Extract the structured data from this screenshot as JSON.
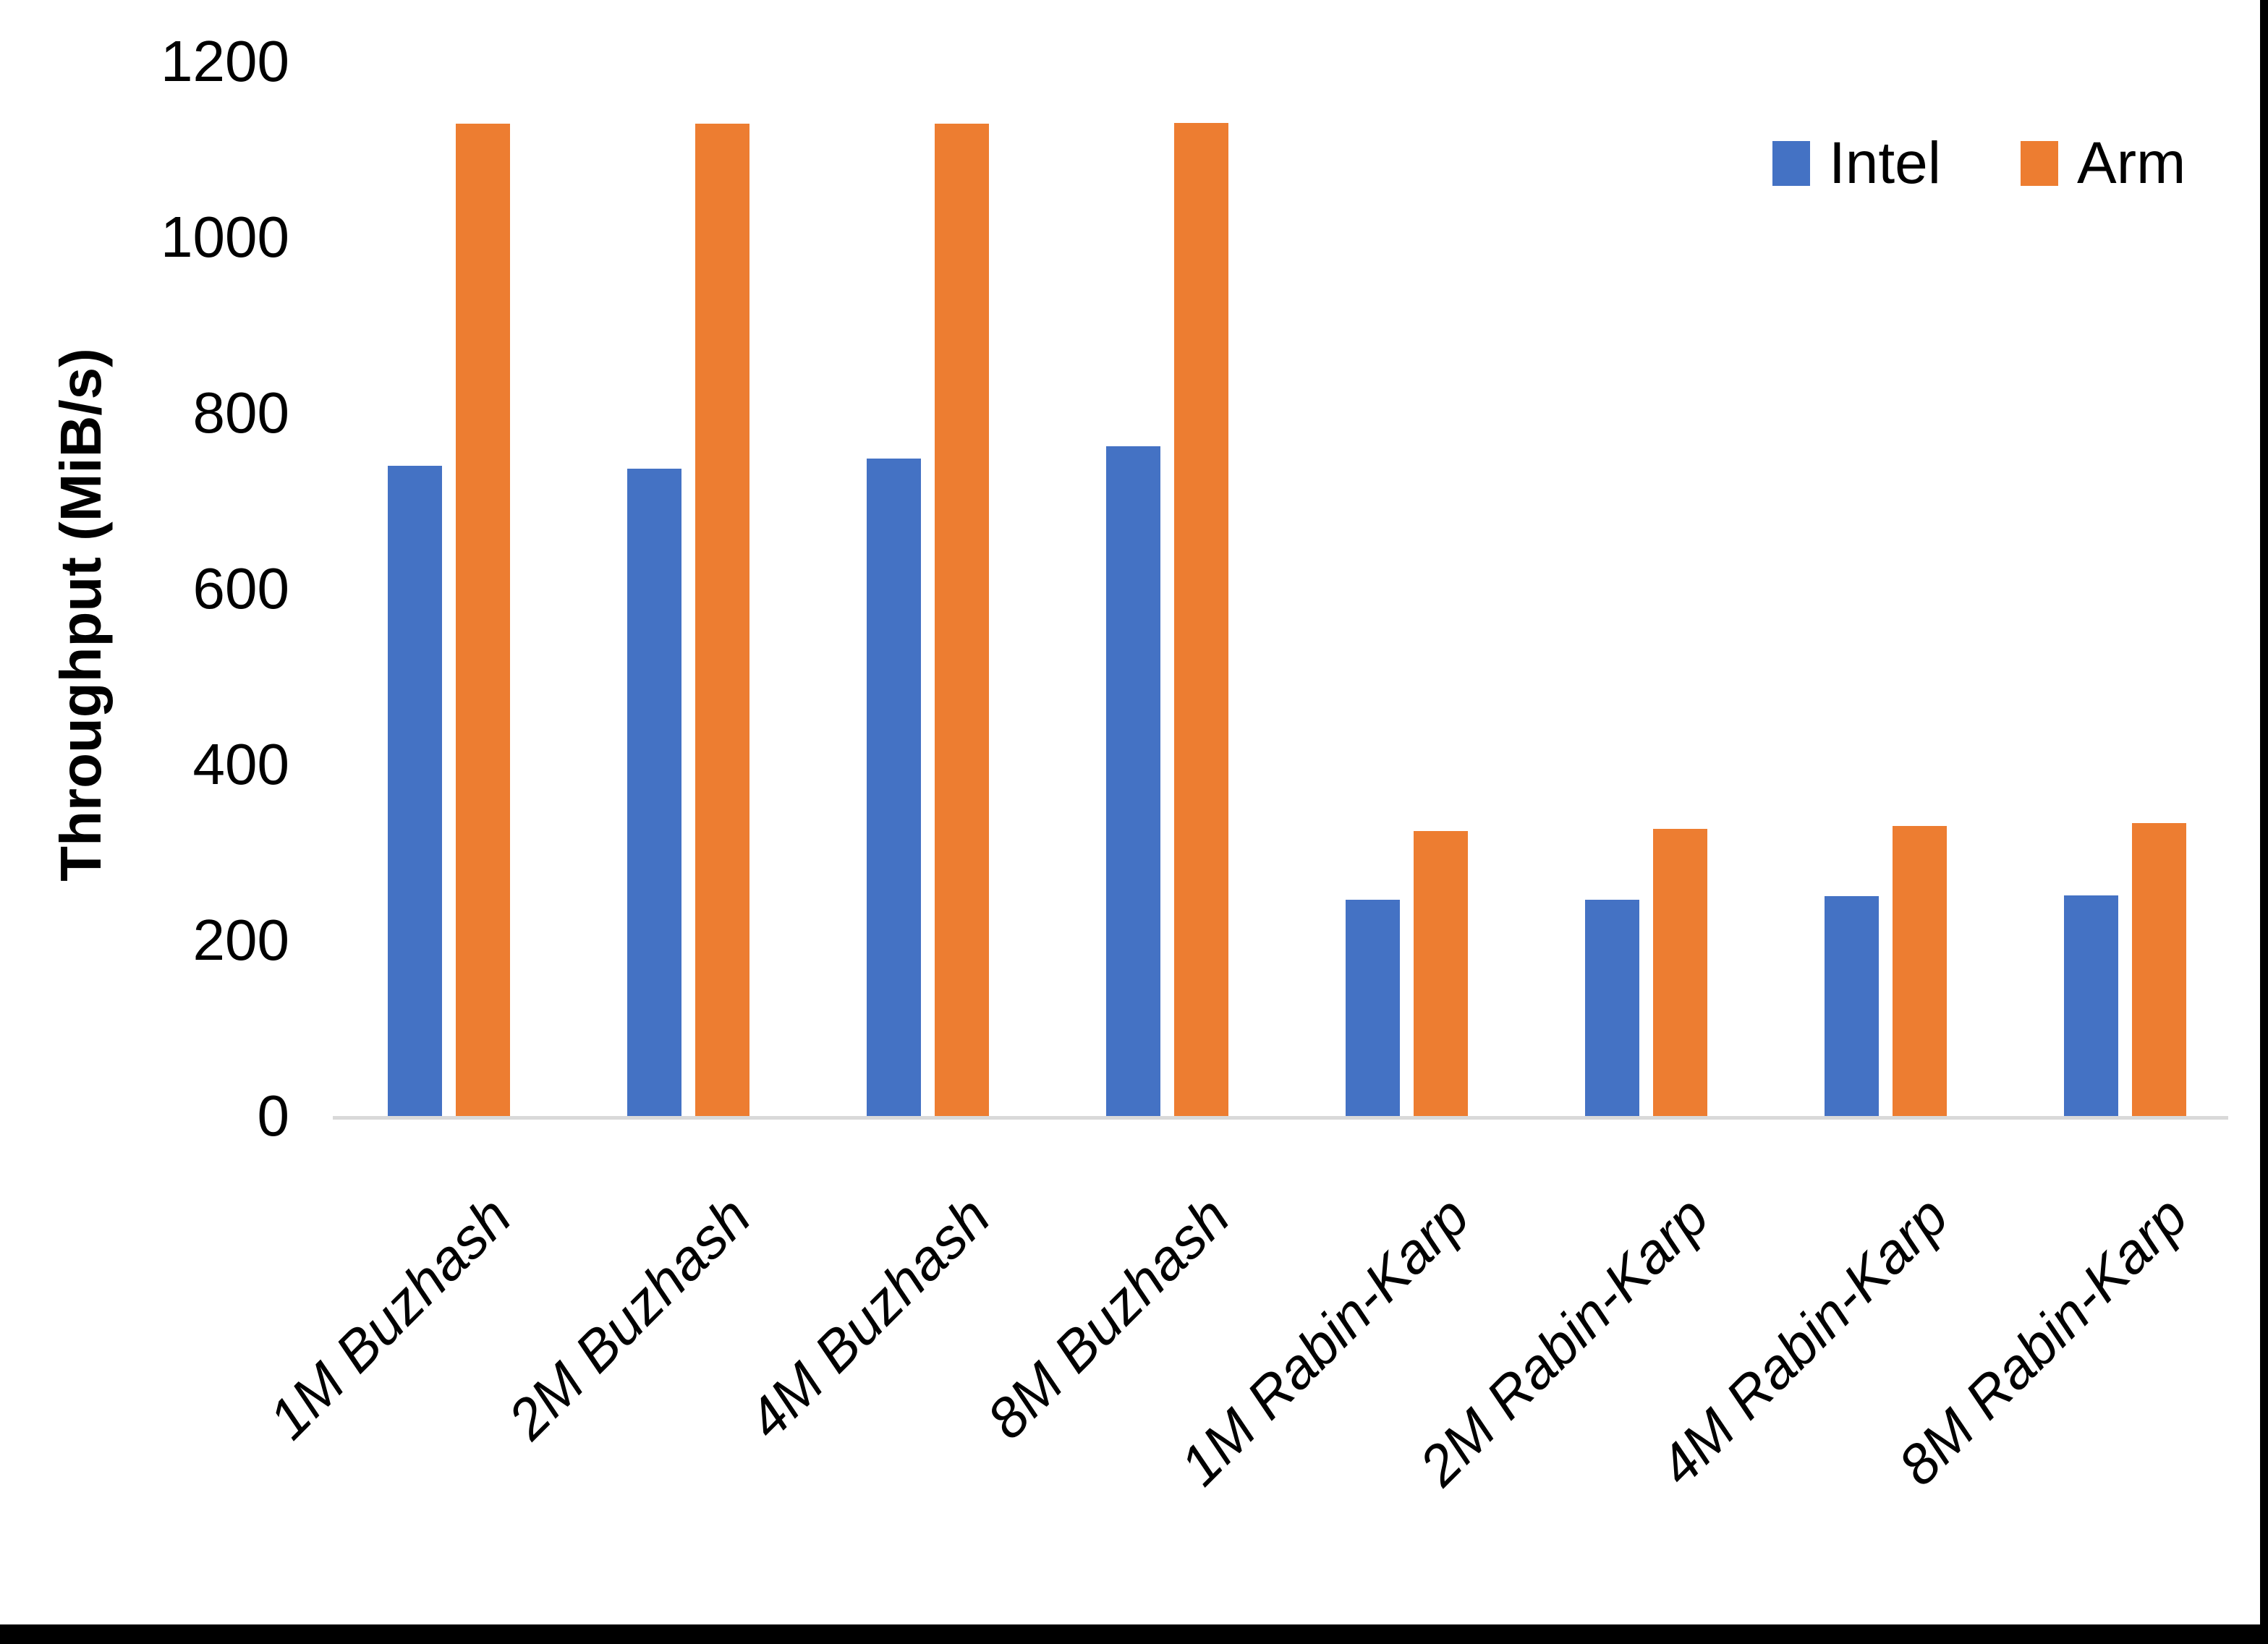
{
  "chart_data": {
    "type": "bar",
    "title": "",
    "ylabel": "Throughput (MiB/s)",
    "xlabel": "",
    "categories": [
      "1M Buzhash",
      "2M Buzhash",
      "4M Buzhash",
      "8M Buzhash",
      "1M Rabin-Karp",
      "2M Rabin-Karp",
      "4M Rabin-Karp",
      "8M Rabin-Karp"
    ],
    "series": [
      {
        "name": "Intel",
        "color": "#4472C4",
        "values": [
          740,
          737,
          748,
          762,
          246,
          246,
          250,
          251
        ]
      },
      {
        "name": "Arm",
        "color": "#ED7D31",
        "values": [
          1129,
          1129,
          1129,
          1130,
          324,
          327,
          330,
          333
        ]
      }
    ],
    "ylim": [
      0,
      1200
    ],
    "yticks": [
      0,
      200,
      400,
      600,
      800,
      1000,
      1200
    ],
    "grid": false,
    "axis_line_color": "#D9D9D9",
    "legend_position": "top-right"
  }
}
